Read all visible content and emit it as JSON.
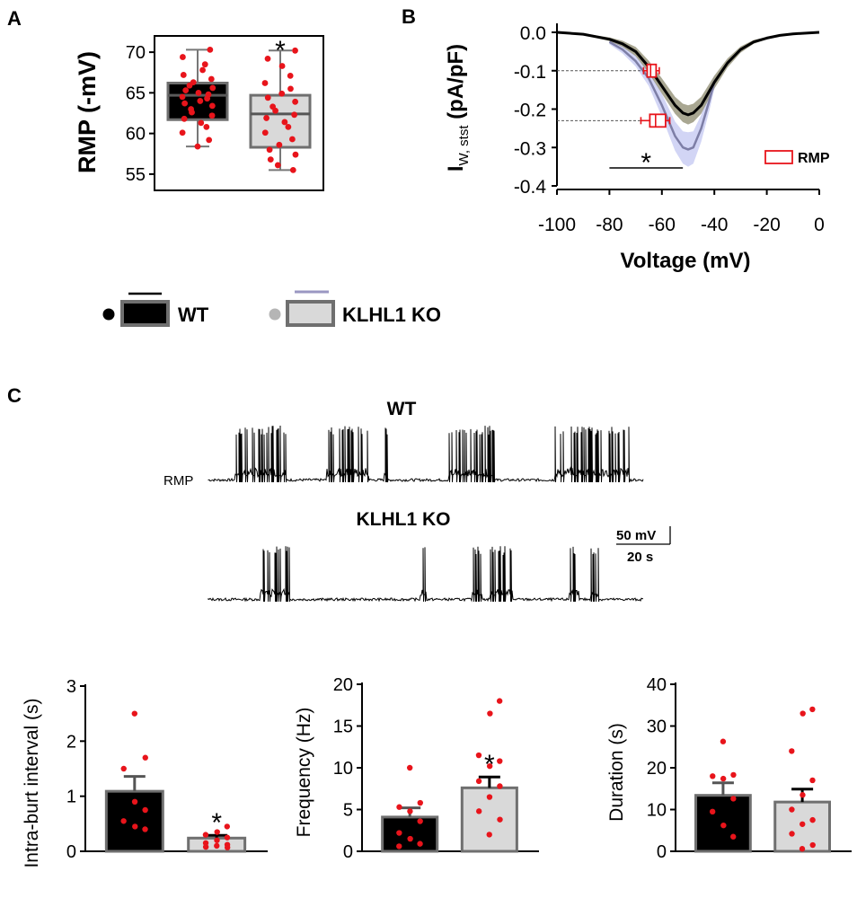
{
  "panel_labels": {
    "a": "A",
    "b": "B",
    "c": "C"
  },
  "legend": {
    "wt": "WT",
    "ko": "KLHL1 KO"
  },
  "colors": {
    "wt_fill": "#000000",
    "ko_fill": "#d9d9d9",
    "box_edge": "#6f6f6f",
    "dot": "#e8141b",
    "wt_curve": "#000000",
    "wt_band": "#8c8a6e",
    "ko_curve": "#7d7ea6",
    "ko_band": "#c7cbf2",
    "rmp_box": "#e8141b"
  },
  "panel_c": {
    "wt_title": "WT",
    "ko_title": "KLHL1 KO",
    "rmp_label": "RMP",
    "scale_mv": "50 mV",
    "scale_s": "20 s",
    "wt_trace": {
      "bursts": [
        [
          262,
          318
        ],
        [
          364,
          410
        ],
        [
          428,
          431
        ],
        [
          500,
          550
        ],
        [
          618,
          700
        ]
      ]
    },
    "ko_trace": {
      "bursts": [
        [
          290,
          322
        ],
        [
          468,
          474
        ],
        [
          526,
          536
        ],
        [
          546,
          570
        ],
        [
          634,
          644
        ],
        [
          658,
          666
        ]
      ]
    }
  },
  "chart_data": [
    {
      "id": "A",
      "type": "box",
      "ylabel": "RMP (-mV)",
      "ylim": [
        53,
        72
      ],
      "yticks": [
        "55",
        "60",
        "65",
        "70"
      ],
      "ytick_values": [
        55,
        60,
        65,
        70
      ],
      "groups": [
        {
          "name": "WT",
          "min": 58.4,
          "q1": 61.7,
          "median": 64.7,
          "q3": 66.2,
          "max": 70.3,
          "points": [
            58.4,
            59.2,
            60.1,
            60.8,
            61.3,
            61.8,
            62.2,
            62.6,
            63.0,
            63.4,
            63.7,
            64.0,
            64.3,
            64.5,
            64.8,
            65.0,
            65.3,
            65.6,
            65.9,
            66.3,
            66.7,
            67.2,
            67.8,
            68.5,
            69.4,
            70.3
          ]
        },
        {
          "name": "KLHL1 KO",
          "min": 55.5,
          "q1": 58.3,
          "median": 62.4,
          "q3": 64.7,
          "max": 70.2,
          "annotation": "*",
          "points": [
            55.5,
            56.1,
            56.8,
            57.4,
            58.0,
            58.6,
            59.3,
            60.1,
            60.8,
            61.4,
            61.9,
            62.3,
            62.8,
            63.3,
            63.9,
            64.4,
            64.9,
            65.5,
            66.2,
            67.1,
            68.3,
            69.2,
            70.2
          ]
        }
      ]
    },
    {
      "id": "B",
      "type": "line",
      "xlabel": "Voltage (mV)",
      "ylabel": "I",
      "ylabel_sub": "W, stst",
      "ylabel_unit": " (pA/pF)",
      "xlim": [
        -100,
        0
      ],
      "ylim": [
        -0.4,
        0.0
      ],
      "xticks": [
        "-100",
        "-80",
        "-60",
        "-40",
        "-20",
        "0"
      ],
      "xtick_values": [
        -100,
        -80,
        -60,
        -40,
        -20,
        0
      ],
      "yticks": [
        "0.0",
        "-0.1",
        "-0.2",
        "-0.3",
        "-0.4"
      ],
      "ytick_values": [
        0,
        -0.1,
        -0.2,
        -0.3,
        -0.4
      ],
      "series": [
        {
          "name": "WT",
          "x": [
            -100,
            -90,
            -80,
            -75,
            -70,
            -65,
            -60,
            -55,
            -52,
            -50,
            -48,
            -45,
            -40,
            -35,
            -30,
            -25,
            -20,
            -15,
            -10,
            -5,
            0
          ],
          "y": [
            0.0,
            -0.005,
            -0.018,
            -0.03,
            -0.05,
            -0.09,
            -0.14,
            -0.19,
            -0.21,
            -0.215,
            -0.21,
            -0.19,
            -0.13,
            -0.08,
            -0.045,
            -0.025,
            -0.015,
            -0.008,
            -0.004,
            -0.002,
            0.0
          ],
          "sem": [
            0,
            0.002,
            0.005,
            0.008,
            0.012,
            0.016,
            0.02,
            0.022,
            0.024,
            0.025,
            0.024,
            0.022,
            0.017,
            0.012,
            0.008,
            0.005,
            0.003,
            0.002,
            0.001,
            0.0,
            0
          ]
        },
        {
          "name": "KLHL1 KO",
          "x": [
            -80,
            -75,
            -70,
            -65,
            -60,
            -55,
            -52,
            -50,
            -48,
            -45,
            -42,
            -40
          ],
          "y": [
            -0.025,
            -0.045,
            -0.075,
            -0.12,
            -0.19,
            -0.27,
            -0.3,
            -0.305,
            -0.3,
            -0.25,
            -0.18,
            -0.13
          ],
          "sem": [
            0.006,
            0.01,
            0.014,
            0.02,
            0.03,
            0.038,
            0.042,
            0.045,
            0.042,
            0.035,
            0.026,
            0.018
          ]
        }
      ],
      "rmp_boxes": [
        {
          "name": "WT",
          "y": -0.1,
          "median": -64.3,
          "q1": -65.6,
          "q3": -62.2,
          "min": -67,
          "max": -61
        },
        {
          "name": "KLHL1 KO",
          "y": -0.23,
          "median": -62.4,
          "q1": -64.6,
          "q3": -58.6,
          "min": -68,
          "max": -57
        }
      ],
      "significance": {
        "label": "*",
        "x_range": [
          -80,
          -52
        ]
      },
      "legend_label": "RMP"
    },
    {
      "id": "C1",
      "type": "bar",
      "ylabel": "Intra-burt interval (s)",
      "ylim": [
        0,
        3
      ],
      "yticks": [
        "0",
        "1",
        "2",
        "3"
      ],
      "ytick_values": [
        0,
        1,
        2,
        3
      ],
      "categories": [
        "WT",
        "KLHL1 KO"
      ],
      "values": [
        1.09,
        0.24
      ],
      "errors": [
        0.27,
        0.05
      ],
      "points": [
        [
          2.5,
          1.7,
          1.5,
          0.9,
          0.75,
          0.55,
          0.45,
          0.4
        ],
        [
          0.45,
          0.35,
          0.3,
          0.25,
          0.2,
          0.15,
          0.12,
          0.1,
          0.08,
          0.07
        ]
      ],
      "annotations": [
        "",
        "*"
      ]
    },
    {
      "id": "C2",
      "type": "bar",
      "ylabel": "Frequency (Hz)",
      "ylim": [
        0,
        20
      ],
      "yticks": [
        "0",
        "5",
        "10",
        "15",
        "20"
      ],
      "ytick_values": [
        0,
        5,
        10,
        15,
        20
      ],
      "categories": [
        "WT",
        "KLHL1 KO"
      ],
      "values": [
        4.1,
        7.6
      ],
      "errors": [
        1.1,
        1.3
      ],
      "points": [
        [
          10,
          5.8,
          5.3,
          4.8,
          3.6,
          2.2,
          1.5,
          0.9,
          0.6
        ],
        [
          18,
          16.5,
          11.5,
          10.8,
          10.2,
          8.4,
          7.8,
          6.5,
          4.8,
          3.8,
          2.0
        ]
      ],
      "annotations": [
        "",
        "*"
      ]
    },
    {
      "id": "C3",
      "type": "bar",
      "ylabel": "Duration (s)",
      "ylim": [
        0,
        40
      ],
      "yticks": [
        "0",
        "10",
        "20",
        "30",
        "40"
      ],
      "ytick_values": [
        0,
        10,
        20,
        30,
        40
      ],
      "categories": [
        "WT",
        "KLHL1 KO"
      ],
      "values": [
        13.4,
        11.8
      ],
      "errors": [
        3.0,
        3.1
      ],
      "points": [
        [
          26.3,
          18.3,
          18,
          17.4,
          12.6,
          9.5,
          6.2,
          3.5
        ],
        [
          34,
          33,
          24,
          17,
          13.5,
          10,
          7.5,
          6.5,
          4.2,
          1.5,
          0.6
        ]
      ],
      "annotations": [
        "",
        ""
      ]
    }
  ]
}
